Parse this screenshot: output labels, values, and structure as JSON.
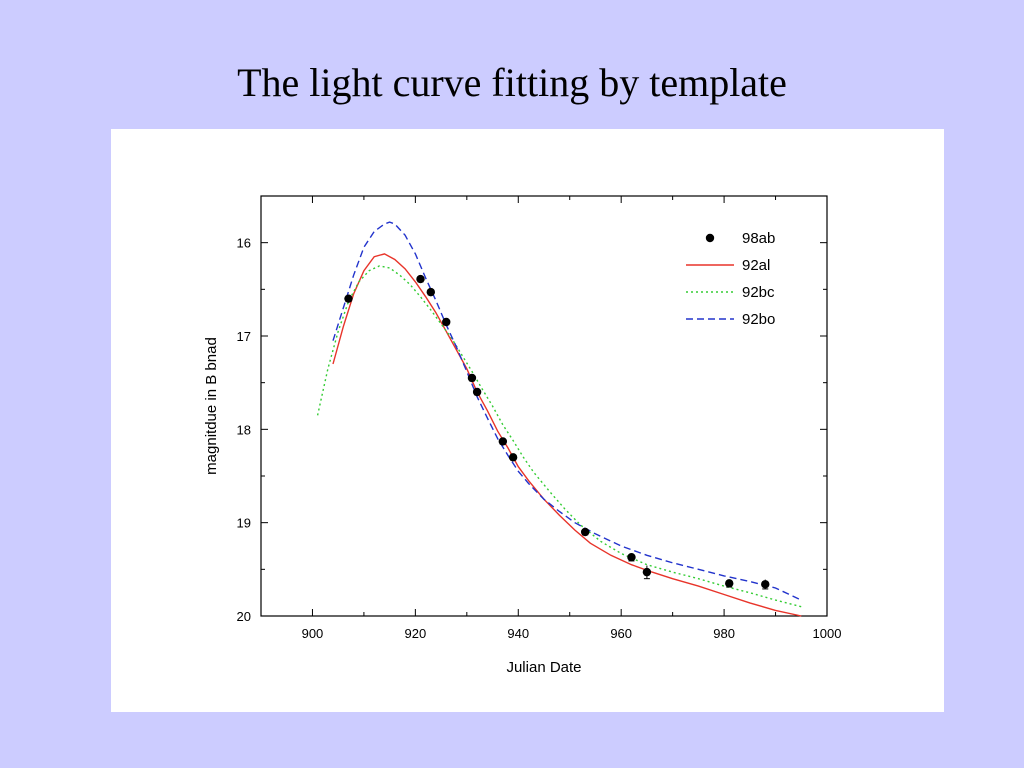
{
  "slide": {
    "title": "The light curve fitting by template"
  },
  "chart_data": {
    "type": "scatter",
    "title": "",
    "xlabel": "Julian Date",
    "ylabel": "magnitdue in B bnad",
    "xlim": [
      890,
      1000
    ],
    "ylim": [
      20,
      15.5
    ],
    "y_inverted": true,
    "x_ticks": [
      900,
      920,
      940,
      960,
      980,
      1000
    ],
    "y_ticks": [
      16,
      17,
      18,
      19,
      20
    ],
    "grid": false,
    "legend_position": "top-right",
    "series": [
      {
        "name": "98ab",
        "style": "points",
        "color": "#000000",
        "x": [
          907,
          921,
          923,
          926,
          931,
          932,
          937,
          939,
          953,
          962,
          965,
          981,
          988
        ],
        "y": [
          16.6,
          16.39,
          16.53,
          16.85,
          17.45,
          17.6,
          18.13,
          18.3,
          19.1,
          19.37,
          19.53,
          19.65,
          19.66
        ],
        "err": [
          0.03,
          0.03,
          0.03,
          0.03,
          0.03,
          0.03,
          0.03,
          0.03,
          0.03,
          0.04,
          0.07,
          0.04,
          0.05
        ]
      },
      {
        "name": "92al",
        "style": "solid",
        "color": "#e8342a",
        "x": [
          904,
          906,
          908,
          910,
          912,
          914,
          916,
          918,
          920,
          922,
          924,
          926,
          928,
          930,
          932,
          934,
          936,
          938,
          940,
          942,
          945,
          948,
          951,
          954,
          958,
          962,
          966,
          970,
          975,
          980,
          985,
          990,
          995
        ],
        "y": [
          17.3,
          16.9,
          16.55,
          16.3,
          16.15,
          16.12,
          16.18,
          16.28,
          16.42,
          16.58,
          16.75,
          16.95,
          17.15,
          17.35,
          17.6,
          17.8,
          18.02,
          18.2,
          18.4,
          18.55,
          18.75,
          18.92,
          19.08,
          19.22,
          19.35,
          19.45,
          19.53,
          19.6,
          19.68,
          19.77,
          19.86,
          19.94,
          20.0
        ]
      },
      {
        "name": "92bc",
        "style": "dotted",
        "color": "#33cc33",
        "x": [
          901,
          903,
          905,
          907,
          909,
          911,
          913,
          915,
          917,
          919,
          921,
          923,
          925,
          927,
          929,
          931,
          933,
          935,
          937,
          939,
          941,
          943,
          946,
          949,
          952,
          956,
          960,
          965,
          970,
          975,
          980,
          985,
          990,
          995
        ],
        "y": [
          17.85,
          17.35,
          16.95,
          16.63,
          16.42,
          16.3,
          16.25,
          16.27,
          16.35,
          16.45,
          16.58,
          16.72,
          16.87,
          17.02,
          17.2,
          17.38,
          17.57,
          17.75,
          17.95,
          18.12,
          18.3,
          18.46,
          18.66,
          18.85,
          19.02,
          19.2,
          19.33,
          19.45,
          19.53,
          19.6,
          19.68,
          19.75,
          19.83,
          19.9
        ]
      },
      {
        "name": "92bo",
        "style": "dashed",
        "color": "#2233cc",
        "x": [
          904,
          906,
          908,
          910,
          912,
          914,
          915,
          916,
          918,
          920,
          922,
          924,
          926,
          928,
          930,
          932,
          934,
          936,
          938,
          940,
          942,
          945,
          948,
          951,
          955,
          960,
          965,
          970,
          975,
          980,
          985,
          990,
          995
        ],
        "y": [
          17.05,
          16.7,
          16.35,
          16.05,
          15.88,
          15.8,
          15.78,
          15.8,
          15.92,
          16.12,
          16.38,
          16.62,
          16.88,
          17.12,
          17.38,
          17.65,
          17.88,
          18.1,
          18.28,
          18.45,
          18.58,
          18.75,
          18.88,
          19.0,
          19.12,
          19.25,
          19.35,
          19.43,
          19.5,
          19.57,
          19.63,
          19.7,
          19.83
        ]
      }
    ]
  }
}
